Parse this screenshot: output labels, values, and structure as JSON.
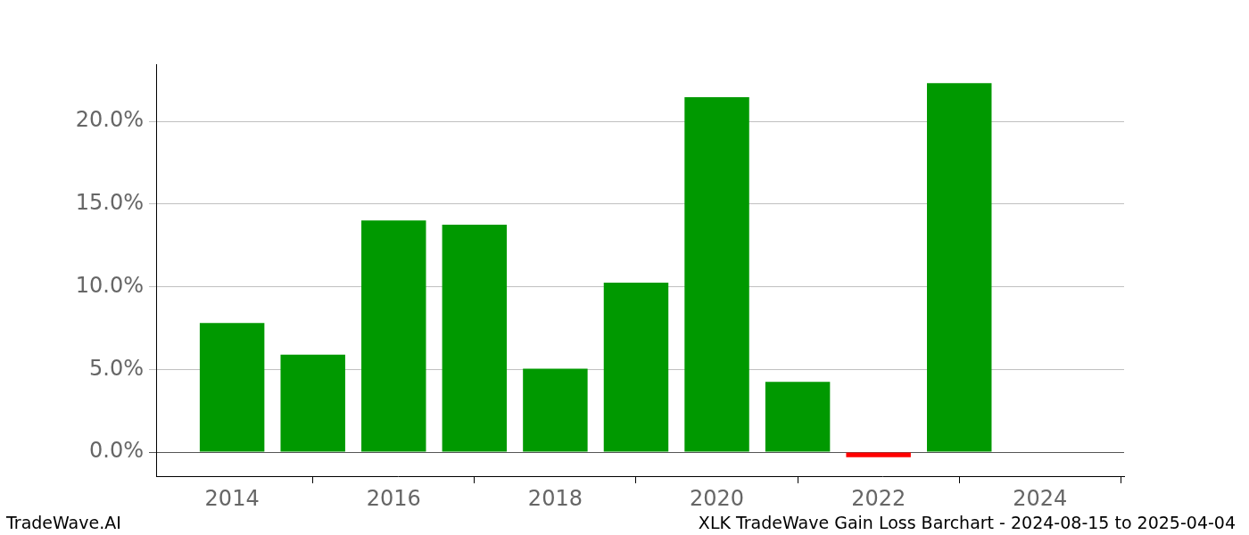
{
  "chart_data": {
    "type": "bar",
    "title": "XLK TradeWave Gain Loss Barchart - 2024-08-15 to 2025-04-04",
    "annotations": [
      "TradeWave.AI"
    ],
    "x": [
      2014,
      2015,
      2016,
      2017,
      2018,
      2019,
      2020,
      2021,
      2022,
      2023
    ],
    "values": [
      7.8,
      5.9,
      14.0,
      13.75,
      5.05,
      10.25,
      21.45,
      4.25,
      -0.3,
      22.3
    ],
    "colors": [
      "#009900",
      "#009900",
      "#009900",
      "#009900",
      "#009900",
      "#009900",
      "#009900",
      "#009900",
      "#ff0000",
      "#009900"
    ],
    "xlim": [
      2013.06,
      2025.04
    ],
    "xticks": [
      2014,
      2016,
      2018,
      2020,
      2022,
      2024
    ],
    "ylim": [
      -1.45,
      23.45
    ],
    "yticks": [
      {
        "value": 0,
        "label": "0.0%"
      },
      {
        "value": 5,
        "label": "5.0%"
      },
      {
        "value": 10,
        "label": "10.0%"
      },
      {
        "value": 15,
        "label": "15.0%"
      },
      {
        "value": 20,
        "label": "20.0%"
      }
    ],
    "grid": true
  }
}
